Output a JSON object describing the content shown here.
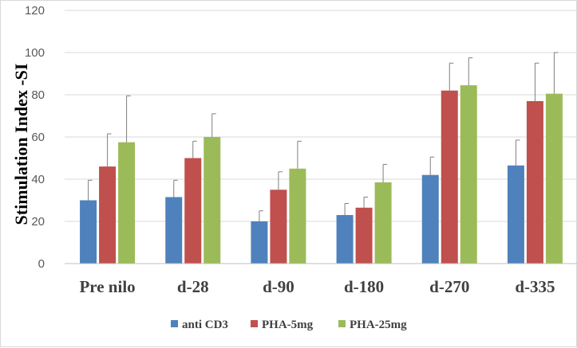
{
  "chart_data": {
    "type": "bar",
    "title": "",
    "xlabel": "",
    "ylabel": "Stimulation Index -SI",
    "ylim": [
      0,
      120
    ],
    "yticks": [
      0,
      20,
      40,
      60,
      80,
      100,
      120
    ],
    "grid": true,
    "legend_position": "bottom",
    "categories": [
      "Pre nilo",
      "d-28",
      "d-90",
      "d-180",
      "d-270",
      "d-335"
    ],
    "series": [
      {
        "name": "anti CD3",
        "color": "#4f81bd",
        "values": [
          30,
          31.5,
          20,
          23,
          42,
          46.5
        ],
        "errors": [
          9.5,
          8,
          5,
          5.5,
          8.5,
          12
        ]
      },
      {
        "name": "PHA-5mg",
        "color": "#c0504d",
        "values": [
          46,
          50,
          35,
          26.5,
          82,
          77
        ],
        "errors": [
          15.5,
          8,
          8.5,
          5,
          13,
          18
        ]
      },
      {
        "name": "PHA-25mg",
        "color": "#9bbb59",
        "values": [
          57.5,
          60,
          45,
          38.5,
          84.5,
          80.5
        ],
        "errors": [
          22,
          11,
          13,
          8.5,
          13,
          19.5
        ]
      }
    ]
  }
}
